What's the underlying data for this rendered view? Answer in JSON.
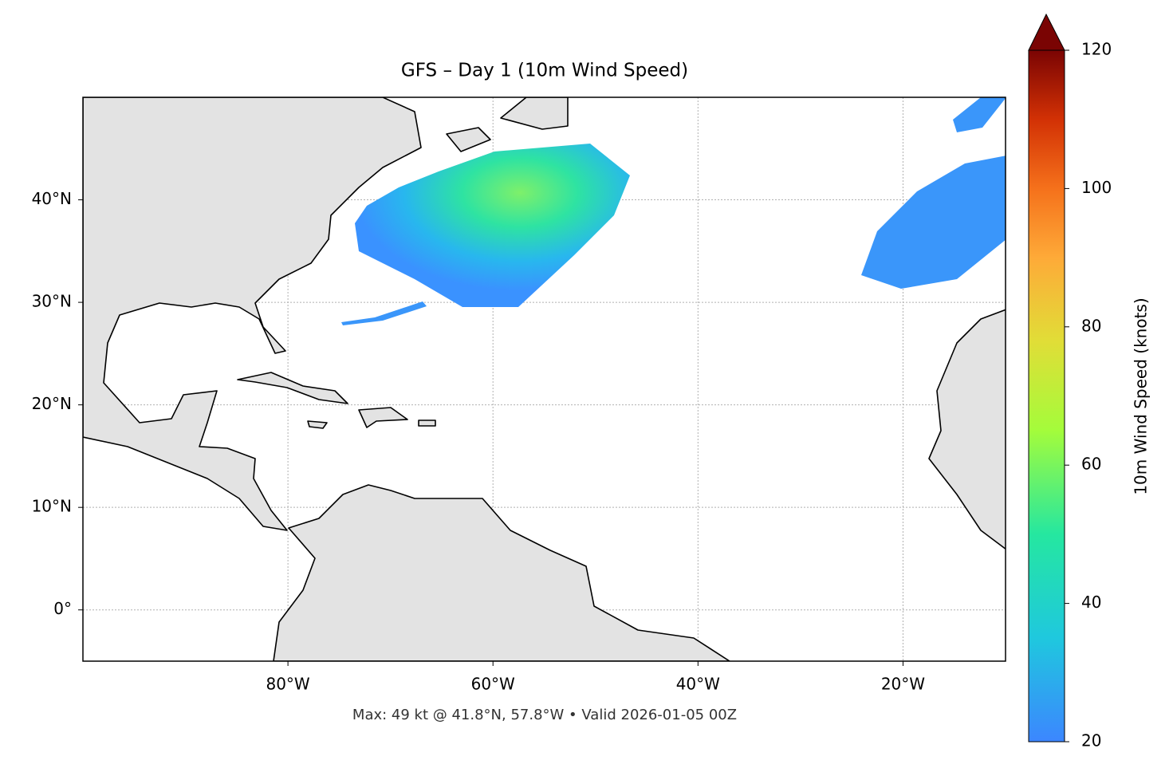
{
  "chart_data": {
    "type": "map",
    "title": "GFS – Day 1 (10m Wind Speed)",
    "annotation": "Max: 49 kt @ 41.8°N, 57.8°W • Valid 2026-01-05 00Z",
    "xlim": [
      -100,
      -10
    ],
    "ylim": [
      -5,
      50
    ],
    "xticks": [
      {
        "value": -80,
        "label": "80°W"
      },
      {
        "value": -60,
        "label": "60°W"
      },
      {
        "value": -40,
        "label": "40°W"
      },
      {
        "value": -20,
        "label": "20°W"
      }
    ],
    "yticks": [
      {
        "value": 0,
        "label": "0°"
      },
      {
        "value": 10,
        "label": "10°N"
      },
      {
        "value": 20,
        "label": "20°N"
      },
      {
        "value": 30,
        "label": "30°N"
      },
      {
        "value": 40,
        "label": "40°N"
      }
    ],
    "grid": true,
    "colorbar": {
      "label": "10m Wind Speed (knots)",
      "lim": [
        20,
        120
      ],
      "ticks": [
        20,
        40,
        60,
        80,
        100,
        120
      ]
    }
  }
}
